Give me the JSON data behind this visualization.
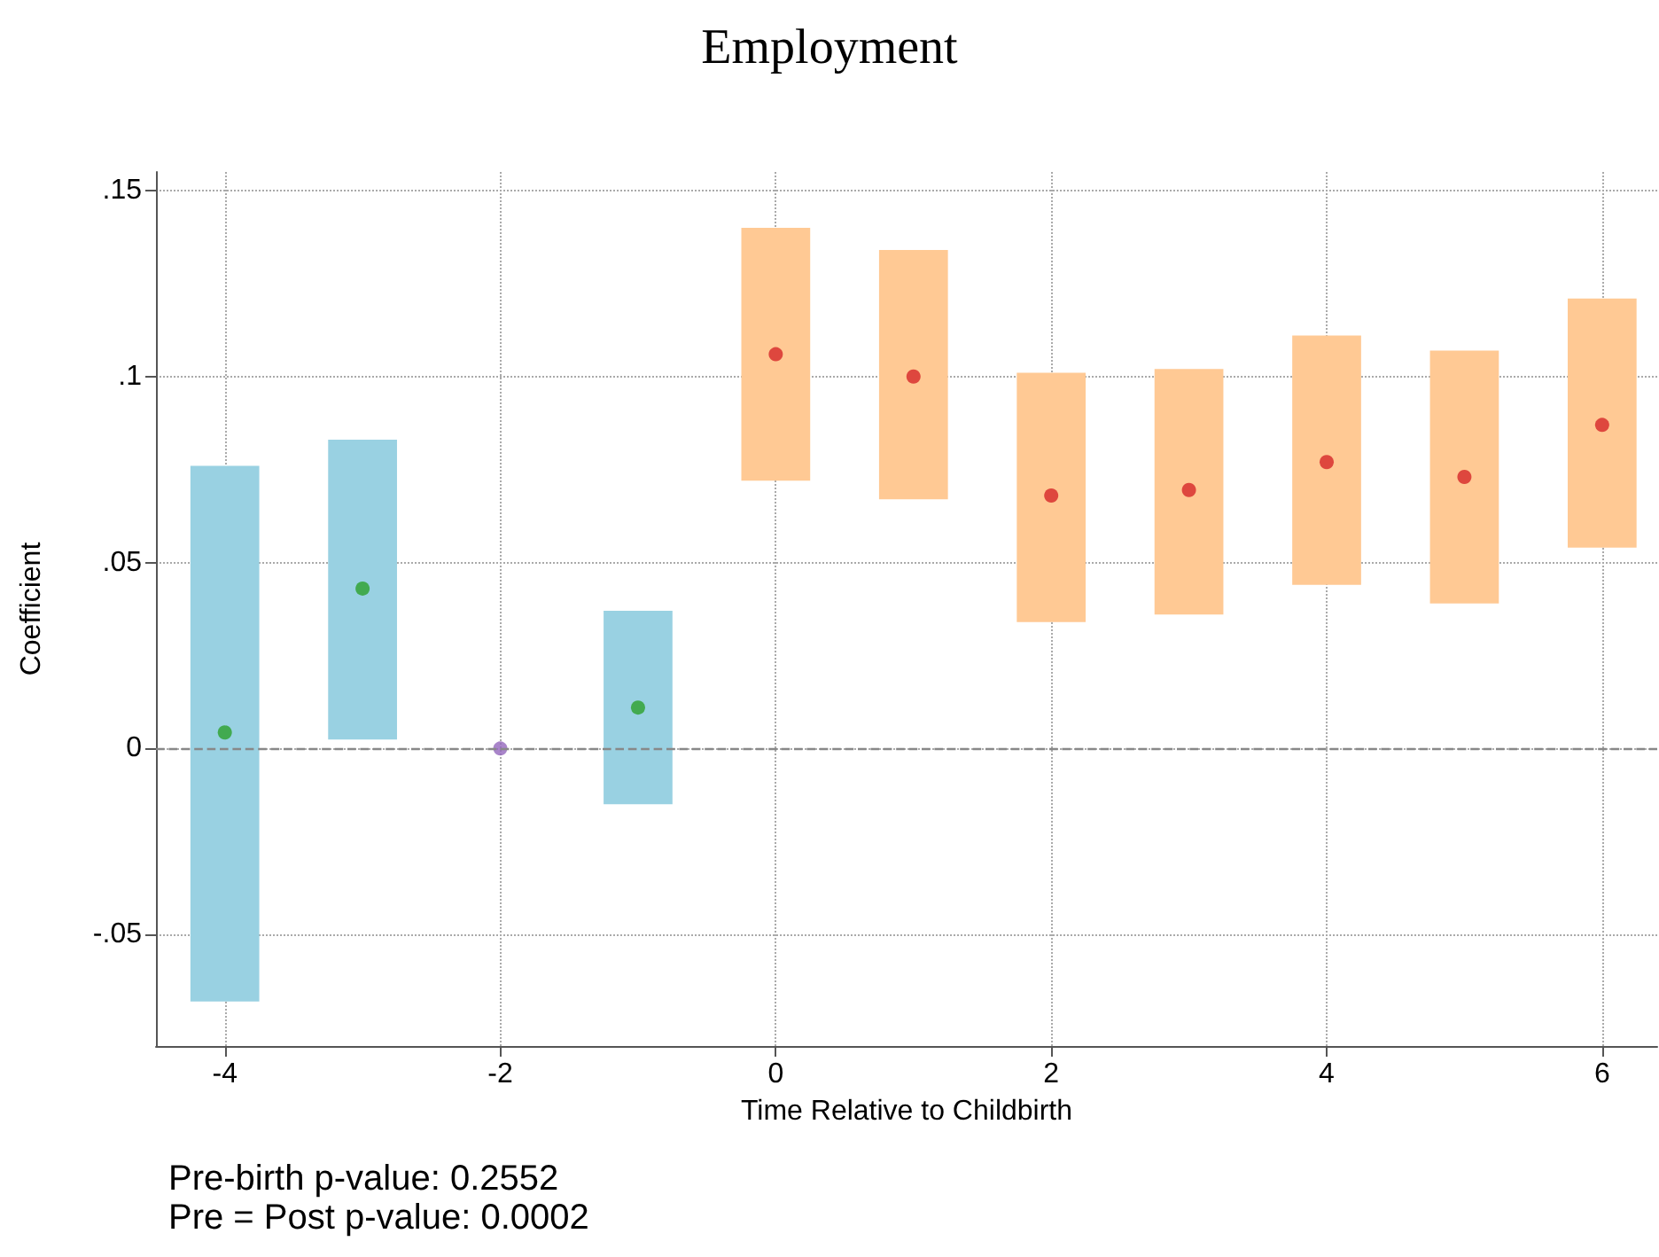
{
  "chart_data": {
    "type": "scatter",
    "title": "Employment",
    "xlabel": "Time Relative to Childbirth",
    "ylabel": "Coefficient",
    "xlim": [
      -4.5,
      6.4
    ],
    "xticks": [
      -4,
      -2,
      0,
      2,
      4,
      6
    ],
    "ylim": [
      -0.08,
      0.155
    ],
    "yticks": [
      {
        "value": -0.05,
        "label": "-.05"
      },
      {
        "value": 0,
        "label": "0"
      },
      {
        "value": 0.05,
        "label": ".05"
      },
      {
        "value": 0.1,
        "label": ".1"
      },
      {
        "value": 0.15,
        "label": ".15"
      }
    ],
    "grid": true,
    "marker": "circle",
    "series": [
      {
        "type": "bar",
        "color": "#99d1e2",
        "x": [
          -4,
          -3,
          -1
        ],
        "base": [
          -0.068,
          0.0024,
          -0.015
        ],
        "values": [
          0.144,
          0.0806,
          0.052
        ]
      },
      {
        "type": "bar",
        "color": "#ffc994",
        "x": [
          0,
          1,
          2,
          3,
          4,
          5,
          6
        ],
        "base": [
          0.072,
          0.067,
          0.034,
          0.036,
          0.044,
          0.039,
          0.054
        ],
        "values": [
          0.068,
          0.067,
          0.067,
          0.066,
          0.067,
          0.068,
          0.067
        ]
      },
      {
        "color": "#2ca02c",
        "x": [
          -4,
          -3,
          -1
        ],
        "values": [
          0.0043,
          0.043,
          0.011
        ]
      },
      {
        "color": "#9467bd",
        "x": [
          -2
        ],
        "values": [
          0
        ]
      },
      {
        "color": "#d62728",
        "x": [
          0,
          1,
          2,
          3,
          4,
          5,
          6
        ],
        "values": [
          0.106,
          0.1,
          0.068,
          0.0695,
          0.077,
          0.073,
          0.087
        ]
      }
    ],
    "ref_lines": [
      {
        "axis": "y",
        "value": 0,
        "label": null,
        "color": "#888888",
        "line_style": "dashed"
      }
    ],
    "annotations": [
      "Pre-birth p-value: 0.2552",
      "Pre = Post p-value: 0.0002"
    ]
  }
}
